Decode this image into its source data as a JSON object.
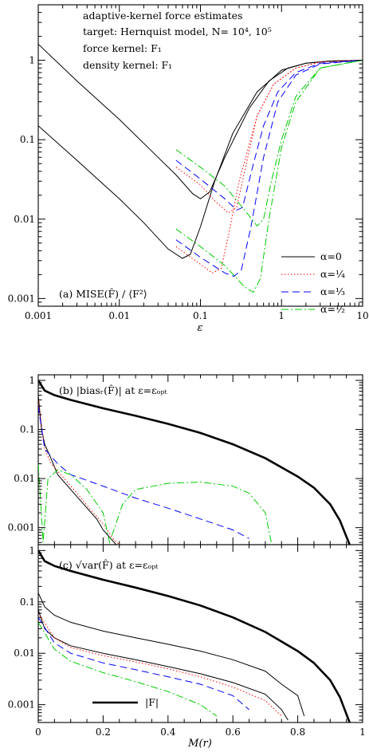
{
  "chart_data": [
    {
      "type": "line",
      "panel": "a",
      "annotations": [
        "adaptive-kernel force estimates",
        "target: Hernquist model, N= 10⁴, 10⁵",
        "force kernel:    F₁",
        "density kernel:  F₁"
      ],
      "panel_label": "(a)  MISE(F̂) / ⟨F²⟩",
      "xlabel": "ε",
      "xscale": "log",
      "yscale": "log",
      "xlim": [
        0.001,
        10
      ],
      "ylim": [
        0.0008,
        5
      ],
      "x_ticks": [
        "0.001",
        "0.01",
        "0.1",
        "1",
        "10"
      ],
      "y_ticks": [
        "0.001",
        "0.01",
        "0.1",
        "1"
      ],
      "legend_position": "lower-right",
      "series": [
        {
          "name": "α=0",
          "color": "#000000",
          "dash": "solid",
          "N": "1e4",
          "points": [
            [
              0.001,
              1.6
            ],
            [
              0.003,
              0.55
            ],
            [
              0.01,
              0.18
            ],
            [
              0.03,
              0.06
            ],
            [
              0.05,
              0.036
            ],
            [
              0.08,
              0.021
            ],
            [
              0.1,
              0.018
            ],
            [
              0.13,
              0.022
            ],
            [
              0.2,
              0.06
            ],
            [
              0.4,
              0.25
            ],
            [
              0.7,
              0.55
            ],
            [
              1.2,
              0.8
            ],
            [
              2,
              0.92
            ],
            [
              4,
              0.98
            ],
            [
              10,
              1.0
            ]
          ]
        },
        {
          "name": "α=0",
          "color": "#000000",
          "dash": "solid",
          "N": "1e5",
          "points": [
            [
              0.001,
              0.15
            ],
            [
              0.003,
              0.055
            ],
            [
              0.01,
              0.018
            ],
            [
              0.02,
              0.009
            ],
            [
              0.04,
              0.0042
            ],
            [
              0.06,
              0.0032
            ],
            [
              0.075,
              0.0036
            ],
            [
              0.1,
              0.008
            ],
            [
              0.15,
              0.03
            ],
            [
              0.25,
              0.12
            ],
            [
              0.5,
              0.4
            ],
            [
              1,
              0.75
            ],
            [
              2,
              0.92
            ],
            [
              4,
              0.98
            ],
            [
              10,
              1.0
            ]
          ]
        },
        {
          "name": "α=¼",
          "color": "#ff0000",
          "dash": "dotted",
          "N": "1e4",
          "points": [
            [
              0.05,
              0.045
            ],
            [
              0.1,
              0.027
            ],
            [
              0.15,
              0.017
            ],
            [
              0.22,
              0.012
            ],
            [
              0.28,
              0.014
            ],
            [
              0.35,
              0.04
            ],
            [
              0.5,
              0.2
            ],
            [
              0.8,
              0.5
            ],
            [
              1.5,
              0.8
            ],
            [
              3,
              0.95
            ],
            [
              10,
              1.0
            ]
          ]
        },
        {
          "name": "α=¼",
          "color": "#ff0000",
          "dash": "dotted",
          "N": "1e5",
          "points": [
            [
              0.05,
              0.0045
            ],
            [
              0.1,
              0.0027
            ],
            [
              0.14,
              0.0021
            ],
            [
              0.18,
              0.0024
            ],
            [
              0.22,
              0.006
            ],
            [
              0.3,
              0.03
            ],
            [
              0.5,
              0.2
            ],
            [
              0.8,
              0.5
            ],
            [
              1.5,
              0.8
            ],
            [
              3,
              0.95
            ],
            [
              10,
              1.0
            ]
          ]
        },
        {
          "name": "α=⅓",
          "color": "#0000ff",
          "dash": "dashed",
          "N": "1e4",
          "points": [
            [
              0.05,
              0.055
            ],
            [
              0.1,
              0.032
            ],
            [
              0.2,
              0.018
            ],
            [
              0.28,
              0.013
            ],
            [
              0.33,
              0.014
            ],
            [
              0.45,
              0.05
            ],
            [
              0.6,
              0.15
            ],
            [
              0.9,
              0.4
            ],
            [
              1.5,
              0.7
            ],
            [
              3,
              0.92
            ],
            [
              10,
              1.0
            ]
          ]
        },
        {
          "name": "α=⅓",
          "color": "#0000ff",
          "dash": "dashed",
          "N": "1e5",
          "points": [
            [
              0.05,
              0.0055
            ],
            [
              0.1,
              0.0033
            ],
            [
              0.2,
              0.0021
            ],
            [
              0.26,
              0.0019
            ],
            [
              0.32,
              0.0023
            ],
            [
              0.42,
              0.008
            ],
            [
              0.6,
              0.06
            ],
            [
              0.9,
              0.3
            ],
            [
              1.5,
              0.65
            ],
            [
              3,
              0.9
            ],
            [
              10,
              1.0
            ]
          ]
        },
        {
          "name": "α=½",
          "color": "#00cc00",
          "dash": "dashdot",
          "N": "1e4",
          "points": [
            [
              0.05,
              0.075
            ],
            [
              0.1,
              0.045
            ],
            [
              0.2,
              0.026
            ],
            [
              0.35,
              0.013
            ],
            [
              0.5,
              0.0082
            ],
            [
              0.6,
              0.01
            ],
            [
              0.75,
              0.03
            ],
            [
              1,
              0.1
            ],
            [
              1.5,
              0.35
            ],
            [
              3,
              0.8
            ],
            [
              10,
              1.0
            ]
          ]
        },
        {
          "name": "α=½",
          "color": "#00cc00",
          "dash": "dashdot",
          "N": "1e5",
          "points": [
            [
              0.05,
              0.0075
            ],
            [
              0.1,
              0.0045
            ],
            [
              0.2,
              0.0026
            ],
            [
              0.35,
              0.0014
            ],
            [
              0.45,
              0.0012
            ],
            [
              0.55,
              0.0018
            ],
            [
              0.7,
              0.01
            ],
            [
              1,
              0.08
            ],
            [
              1.5,
              0.3
            ],
            [
              3,
              0.8
            ],
            [
              10,
              1.0
            ]
          ]
        }
      ]
    },
    {
      "type": "line",
      "panel": "b",
      "panel_label": "(b)   |biasᵣ(F̂)|   at ε=εₒₚₜ",
      "xscale": "linear",
      "yscale": "log",
      "xlim": [
        0,
        1
      ],
      "ylim": [
        0.00045,
        1.3
      ],
      "y_ticks": [
        "0.001",
        "0.01",
        "0.1",
        "1"
      ],
      "series": [
        {
          "name": "|F|",
          "color": "#000000",
          "dash": "solid",
          "weight": "thick",
          "points": [
            [
              0,
              1.0
            ],
            [
              0.02,
              0.62
            ],
            [
              0.05,
              0.5
            ],
            [
              0.1,
              0.4
            ],
            [
              0.2,
              0.27
            ],
            [
              0.3,
              0.19
            ],
            [
              0.4,
              0.13
            ],
            [
              0.5,
              0.085
            ],
            [
              0.6,
              0.05
            ],
            [
              0.7,
              0.026
            ],
            [
              0.8,
              0.011
            ],
            [
              0.85,
              0.0065
            ],
            [
              0.9,
              0.003
            ],
            [
              0.93,
              0.0014
            ],
            [
              0.96,
              0.00045
            ]
          ]
        },
        {
          "name": "α=0",
          "color": "#000000",
          "dash": "solid",
          "points": [
            [
              0,
              0.5
            ],
            [
              0.01,
              0.1
            ],
            [
              0.02,
              0.05
            ],
            [
              0.04,
              0.025
            ],
            [
              0.06,
              0.012
            ],
            [
              0.1,
              0.006
            ],
            [
              0.14,
              0.003
            ],
            [
              0.18,
              0.0015
            ],
            [
              0.2,
              0.0009
            ],
            [
              0.24,
              0.00045
            ]
          ]
        },
        {
          "name": "α=¼",
          "color": "#ff0000",
          "dash": "dotted",
          "points": [
            [
              0,
              0.4
            ],
            [
              0.02,
              0.04
            ],
            [
              0.04,
              0.02
            ],
            [
              0.08,
              0.01
            ],
            [
              0.12,
              0.005
            ],
            [
              0.16,
              0.0024
            ],
            [
              0.2,
              0.0012
            ],
            [
              0.23,
              0.0006
            ],
            [
              0.25,
              0.00045
            ]
          ]
        },
        {
          "name": "α=⅓",
          "color": "#0000ff",
          "dash": "dashed",
          "points": [
            [
              0,
              0.3
            ],
            [
              0.02,
              0.04
            ],
            [
              0.06,
              0.02
            ],
            [
              0.1,
              0.012
            ],
            [
              0.2,
              0.007
            ],
            [
              0.3,
              0.004
            ],
            [
              0.4,
              0.0025
            ],
            [
              0.5,
              0.0015
            ],
            [
              0.6,
              0.0009
            ],
            [
              0.65,
              0.0006
            ]
          ]
        },
        {
          "name": "α=½",
          "color": "#00cc00",
          "dash": "dashdot",
          "points": [
            [
              0,
              0.02
            ],
            [
              0.015,
              0.0005
            ],
            [
              0.03,
              0.01
            ],
            [
              0.06,
              0.015
            ],
            [
              0.1,
              0.012
            ],
            [
              0.15,
              0.006
            ],
            [
              0.2,
              0.002
            ],
            [
              0.22,
              0.0005
            ],
            [
              0.26,
              0.003
            ],
            [
              0.3,
              0.006
            ],
            [
              0.4,
              0.008
            ],
            [
              0.5,
              0.0085
            ],
            [
              0.6,
              0.007
            ],
            [
              0.65,
              0.005
            ],
            [
              0.7,
              0.002
            ],
            [
              0.72,
              0.00045
            ]
          ]
        }
      ]
    },
    {
      "type": "line",
      "panel": "c",
      "panel_label": "(c)   √var(F̂)   at ε=εₒₚₜ",
      "xlabel": "M(r)",
      "xscale": "linear",
      "yscale": "log",
      "xlim": [
        0,
        1
      ],
      "ylim": [
        0.00045,
        1.3
      ],
      "x_ticks": [
        "0",
        "0.2",
        "0.4",
        "0.6",
        "0.8",
        "1"
      ],
      "y_ticks": [
        "0.001",
        "0.01",
        "0.1",
        "1"
      ],
      "legend_entry": "|F|",
      "series": [
        {
          "name": "|F|",
          "color": "#000000",
          "dash": "solid",
          "weight": "thick",
          "points": [
            [
              0,
              1.0
            ],
            [
              0.02,
              0.62
            ],
            [
              0.05,
              0.5
            ],
            [
              0.1,
              0.4
            ],
            [
              0.2,
              0.27
            ],
            [
              0.3,
              0.19
            ],
            [
              0.4,
              0.13
            ],
            [
              0.5,
              0.085
            ],
            [
              0.6,
              0.05
            ],
            [
              0.7,
              0.026
            ],
            [
              0.8,
              0.011
            ],
            [
              0.85,
              0.0065
            ],
            [
              0.9,
              0.003
            ],
            [
              0.93,
              0.0014
            ],
            [
              0.96,
              0.00045
            ]
          ]
        },
        {
          "name": "α=0",
          "color": "#000000",
          "dash": "solid",
          "N": "1e4",
          "points": [
            [
              0,
              0.15
            ],
            [
              0.02,
              0.08
            ],
            [
              0.05,
              0.055
            ],
            [
              0.1,
              0.04
            ],
            [
              0.2,
              0.027
            ],
            [
              0.3,
              0.02
            ],
            [
              0.4,
              0.015
            ],
            [
              0.5,
              0.011
            ],
            [
              0.6,
              0.0075
            ],
            [
              0.7,
              0.0045
            ],
            [
              0.75,
              0.0025
            ],
            [
              0.8,
              0.0015
            ],
            [
              0.82,
              0.0006
            ]
          ]
        },
        {
          "name": "α=0",
          "color": "#000000",
          "dash": "solid",
          "N": "1e5",
          "points": [
            [
              0,
              0.07
            ],
            [
              0.02,
              0.03
            ],
            [
              0.05,
              0.02
            ],
            [
              0.1,
              0.014
            ],
            [
              0.2,
              0.01
            ],
            [
              0.3,
              0.0075
            ],
            [
              0.4,
              0.0055
            ],
            [
              0.5,
              0.004
            ],
            [
              0.6,
              0.0027
            ],
            [
              0.7,
              0.0016
            ],
            [
              0.75,
              0.0008
            ],
            [
              0.77,
              0.0005
            ]
          ]
        },
        {
          "name": "α=¼",
          "color": "#ff0000",
          "dash": "dotted",
          "points": [
            [
              0,
              0.06
            ],
            [
              0.05,
              0.02
            ],
            [
              0.1,
              0.013
            ],
            [
              0.2,
              0.009
            ],
            [
              0.3,
              0.0068
            ],
            [
              0.4,
              0.005
            ],
            [
              0.5,
              0.0035
            ],
            [
              0.6,
              0.0022
            ],
            [
              0.7,
              0.0012
            ],
            [
              0.75,
              0.0006
            ]
          ]
        },
        {
          "name": "α=⅓",
          "color": "#0000ff",
          "dash": "dashed",
          "points": [
            [
              0,
              0.05
            ],
            [
              0.05,
              0.016
            ],
            [
              0.1,
              0.01
            ],
            [
              0.2,
              0.0065
            ],
            [
              0.3,
              0.0048
            ],
            [
              0.4,
              0.0035
            ],
            [
              0.5,
              0.0025
            ],
            [
              0.6,
              0.0015
            ],
            [
              0.65,
              0.0008
            ]
          ]
        },
        {
          "name": "α=½",
          "color": "#00cc00",
          "dash": "dashdot",
          "points": [
            [
              0,
              0.04
            ],
            [
              0.05,
              0.012
            ],
            [
              0.1,
              0.007
            ],
            [
              0.2,
              0.0042
            ],
            [
              0.3,
              0.0028
            ],
            [
              0.4,
              0.0018
            ],
            [
              0.5,
              0.001
            ],
            [
              0.55,
              0.0006
            ]
          ]
        }
      ]
    }
  ]
}
